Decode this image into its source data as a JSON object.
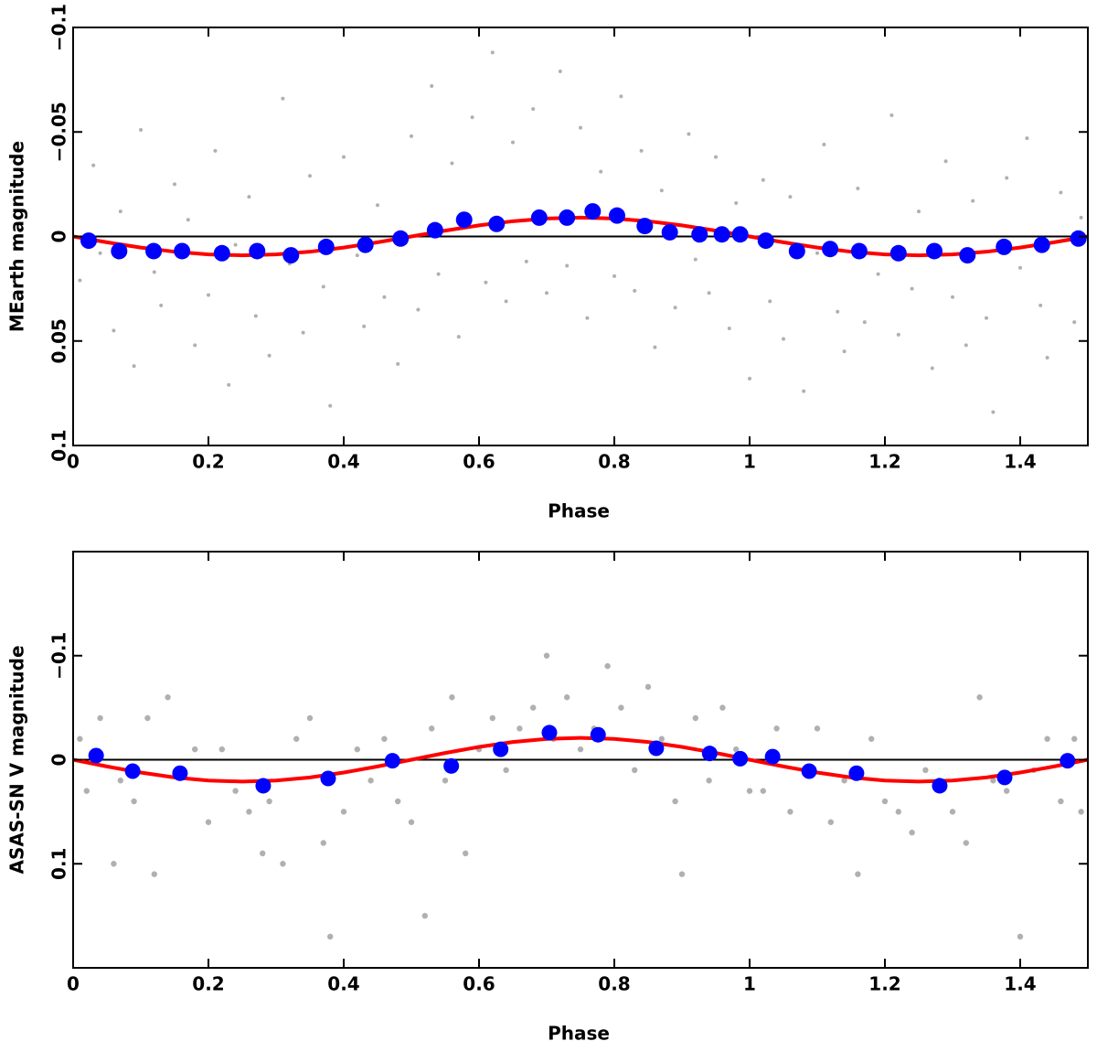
{
  "chart_data": [
    {
      "type": "scatter",
      "xlabel": "Phase",
      "ylabel": "MEarth magnitude",
      "xlim": [
        0,
        1.5
      ],
      "xticks": [
        0,
        0.2,
        0.4,
        0.6,
        0.8,
        1,
        1.2,
        1.4
      ],
      "ylim": [
        0.1,
        -0.1
      ],
      "yticks": [
        {
          "value": -0.1,
          "label": "−0.1"
        },
        {
          "value": -0.05,
          "label": "−0.05"
        },
        0,
        0.05,
        0.1
      ],
      "zero_line": true,
      "series": [
        {
          "style": "dots",
          "color": "#b0b0b0",
          "x": [
            0.01,
            0.03,
            0.04,
            0.06,
            0.07,
            0.09,
            0.1,
            0.12,
            0.13,
            0.15,
            0.17,
            0.18,
            0.2,
            0.21,
            0.23,
            0.24,
            0.26,
            0.27,
            0.29,
            0.31,
            0.32,
            0.34,
            0.35,
            0.37,
            0.38,
            0.4,
            0.42,
            0.43,
            0.45,
            0.46,
            0.48,
            0.5,
            0.51,
            0.53,
            0.54,
            0.56,
            0.57,
            0.59,
            0.61,
            0.62,
            0.64,
            0.65,
            0.67,
            0.68,
            0.7,
            0.72,
            0.73,
            0.75,
            0.76,
            0.78,
            0.8,
            0.81,
            0.83,
            0.84,
            0.86,
            0.87,
            0.89,
            0.91,
            0.92,
            0.94,
            0.95,
            0.97,
            0.98,
            1.0,
            1.02,
            1.03,
            1.05,
            1.06,
            1.08,
            1.1,
            1.11,
            1.13,
            1.14,
            1.16,
            1.17,
            1.19,
            1.21,
            1.22,
            1.24,
            1.25,
            1.27,
            1.29,
            1.3,
            1.32,
            1.33,
            1.35,
            1.36,
            1.38,
            1.4,
            1.41,
            1.43,
            1.44,
            1.46,
            1.48,
            1.49
          ],
          "values": [
            0.021,
            -0.034,
            0.008,
            0.045,
            -0.012,
            0.062,
            -0.051,
            0.017,
            0.033,
            -0.025,
            -0.008,
            0.052,
            0.028,
            -0.041,
            0.071,
            0.004,
            -0.019,
            0.038,
            0.057,
            -0.066,
            0.013,
            0.046,
            -0.029,
            0.024,
            0.081,
            -0.038,
            0.009,
            0.043,
            -0.015,
            0.029,
            0.061,
            -0.048,
            0.035,
            -0.072,
            0.018,
            -0.035,
            0.048,
            -0.057,
            0.022,
            -0.088,
            0.031,
            -0.045,
            0.012,
            -0.061,
            0.027,
            -0.079,
            0.014,
            -0.052,
            0.039,
            -0.031,
            0.019,
            -0.067,
            0.026,
            -0.041,
            0.053,
            -0.022,
            0.034,
            -0.049,
            0.011,
            0.027,
            -0.038,
            0.044,
            -0.016,
            0.068,
            -0.027,
            0.031,
            0.049,
            -0.019,
            0.074,
            0.008,
            -0.044,
            0.036,
            0.055,
            -0.023,
            0.041,
            0.018,
            -0.058,
            0.047,
            0.025,
            -0.012,
            0.063,
            -0.036,
            0.029,
            0.052,
            -0.017,
            0.039,
            0.084,
            -0.028,
            0.015,
            -0.047,
            0.033,
            0.058,
            -0.021,
            0.041,
            -0.009
          ]
        },
        {
          "style": "line",
          "color": "#ff0000",
          "x": [
            0,
            0.05,
            0.1,
            0.15,
            0.2,
            0.25,
            0.3,
            0.35,
            0.4,
            0.45,
            0.5,
            0.55,
            0.6,
            0.65,
            0.7,
            0.75,
            0.8,
            0.85,
            0.9,
            0.95,
            1.0,
            1.05,
            1.1,
            1.15,
            1.2,
            1.25,
            1.3,
            1.35,
            1.4,
            1.45,
            1.5
          ],
          "values": [
            0,
            0.0028,
            0.0053,
            0.0073,
            0.0086,
            0.009,
            0.0086,
            0.0073,
            0.0053,
            0.0028,
            0,
            -0.0028,
            -0.0053,
            -0.0073,
            -0.0086,
            -0.009,
            -0.0086,
            -0.0073,
            -0.0053,
            -0.0028,
            0,
            0.0028,
            0.0053,
            0.0073,
            0.0086,
            0.009,
            0.0086,
            0.0073,
            0.0053,
            0.0028,
            0
          ]
        },
        {
          "style": "markers",
          "color": "#0000ff",
          "x": [
            0.023,
            0.068,
            0.119,
            0.161,
            0.22,
            0.272,
            0.322,
            0.374,
            0.432,
            0.484,
            0.535,
            0.578,
            0.626,
            0.689,
            0.73,
            0.768,
            0.804,
            0.845,
            0.882,
            0.926,
            0.959,
            0.986,
            1.024,
            1.07,
            1.119,
            1.162,
            1.22,
            1.273,
            1.322,
            1.376,
            1.432,
            1.486
          ],
          "values": [
            0.002,
            0.007,
            0.007,
            0.007,
            0.008,
            0.007,
            0.009,
            0.005,
            0.004,
            0.001,
            -0.003,
            -0.008,
            -0.006,
            -0.009,
            -0.009,
            -0.012,
            -0.01,
            -0.005,
            -0.002,
            -0.001,
            -0.001,
            -0.001,
            0.002,
            0.007,
            0.006,
            0.007,
            0.008,
            0.007,
            0.009,
            0.005,
            0.004,
            0.001
          ]
        }
      ]
    },
    {
      "type": "scatter",
      "xlabel": "Phase",
      "ylabel": "ASAS-SN V magnitude",
      "xlim": [
        0,
        1.5
      ],
      "xticks": [
        0,
        0.2,
        0.4,
        0.6,
        0.8,
        1,
        1.2,
        1.4
      ],
      "ylim": [
        0.2,
        -0.2
      ],
      "yticks": [
        {
          "value": -0.1,
          "label": "−0.1"
        },
        0,
        0.1
      ],
      "zero_line": true,
      "series": [
        {
          "style": "dots",
          "color": "#b0b0b0",
          "x": [
            0.01,
            0.02,
            0.04,
            0.06,
            0.07,
            0.09,
            0.11,
            0.12,
            0.14,
            0.16,
            0.18,
            0.2,
            0.22,
            0.24,
            0.26,
            0.28,
            0.29,
            0.31,
            0.33,
            0.35,
            0.37,
            0.38,
            0.4,
            0.42,
            0.44,
            0.46,
            0.48,
            0.5,
            0.52,
            0.53,
            0.55,
            0.56,
            0.58,
            0.6,
            0.62,
            0.64,
            0.66,
            0.68,
            0.7,
            0.71,
            0.73,
            0.75,
            0.77,
            0.79,
            0.81,
            0.83,
            0.85,
            0.87,
            0.89,
            0.9,
            0.92,
            0.94,
            0.96,
            0.98,
            1.0,
            1.02,
            1.04,
            1.06,
            1.08,
            1.1,
            1.12,
            1.14,
            1.16,
            1.18,
            1.2,
            1.22,
            1.24,
            1.26,
            1.28,
            1.3,
            1.32,
            1.34,
            1.36,
            1.38,
            1.4,
            1.42,
            1.44,
            1.46,
            1.48,
            1.49
          ],
          "values": [
            -0.02,
            0.03,
            -0.04,
            0.1,
            0.02,
            0.04,
            -0.04,
            0.11,
            -0.06,
            0.01,
            -0.01,
            0.06,
            -0.01,
            0.03,
            0.05,
            0.09,
            0.04,
            0.1,
            -0.02,
            -0.04,
            0.08,
            0.17,
            0.05,
            -0.01,
            0.02,
            -0.02,
            0.04,
            0.06,
            0.15,
            -0.03,
            0.02,
            -0.06,
            0.09,
            -0.01,
            -0.04,
            0.01,
            -0.03,
            -0.05,
            -0.1,
            -0.02,
            -0.06,
            -0.01,
            -0.03,
            -0.09,
            -0.05,
            0.01,
            -0.07,
            -0.02,
            0.04,
            0.11,
            -0.04,
            0.02,
            -0.05,
            -0.01,
            0.03,
            0.03,
            -0.03,
            0.05,
            0.01,
            -0.03,
            0.06,
            0.02,
            0.11,
            -0.02,
            0.04,
            0.05,
            0.07,
            0.01,
            0.02,
            0.05,
            0.08,
            -0.06,
            0.02,
            0.03,
            0.17,
            0.01,
            -0.02,
            0.04,
            -0.02,
            0.05
          ]
        },
        {
          "style": "line",
          "color": "#ff0000",
          "x": [
            0,
            0.05,
            0.1,
            0.15,
            0.2,
            0.25,
            0.3,
            0.35,
            0.4,
            0.45,
            0.5,
            0.55,
            0.6,
            0.65,
            0.7,
            0.75,
            0.8,
            0.85,
            0.9,
            0.95,
            1.0,
            1.05,
            1.1,
            1.15,
            1.2,
            1.25,
            1.3,
            1.35,
            1.4,
            1.45,
            1.5
          ],
          "values": [
            0,
            0.0065,
            0.0123,
            0.017,
            0.02,
            0.021,
            0.02,
            0.017,
            0.0123,
            0.0065,
            0,
            -0.0065,
            -0.0123,
            -0.017,
            -0.02,
            -0.021,
            -0.02,
            -0.017,
            -0.0123,
            -0.0065,
            0,
            0.0065,
            0.0123,
            0.017,
            0.02,
            0.021,
            0.02,
            0.017,
            0.0123,
            0.0065,
            0
          ]
        },
        {
          "style": "markers",
          "color": "#0000ff",
          "x": [
            0.034,
            0.088,
            0.158,
            0.281,
            0.377,
            0.472,
            0.559,
            0.632,
            0.704,
            0.776,
            0.862,
            0.941,
            0.986,
            1.034,
            1.088,
            1.158,
            1.281,
            1.377,
            1.47
          ],
          "values": [
            -0.004,
            0.011,
            0.013,
            0.025,
            0.018,
            0.001,
            0.006,
            -0.01,
            -0.026,
            -0.024,
            -0.011,
            -0.006,
            -0.001,
            -0.003,
            0.011,
            0.013,
            0.025,
            0.017,
            0.001
          ]
        }
      ]
    }
  ]
}
